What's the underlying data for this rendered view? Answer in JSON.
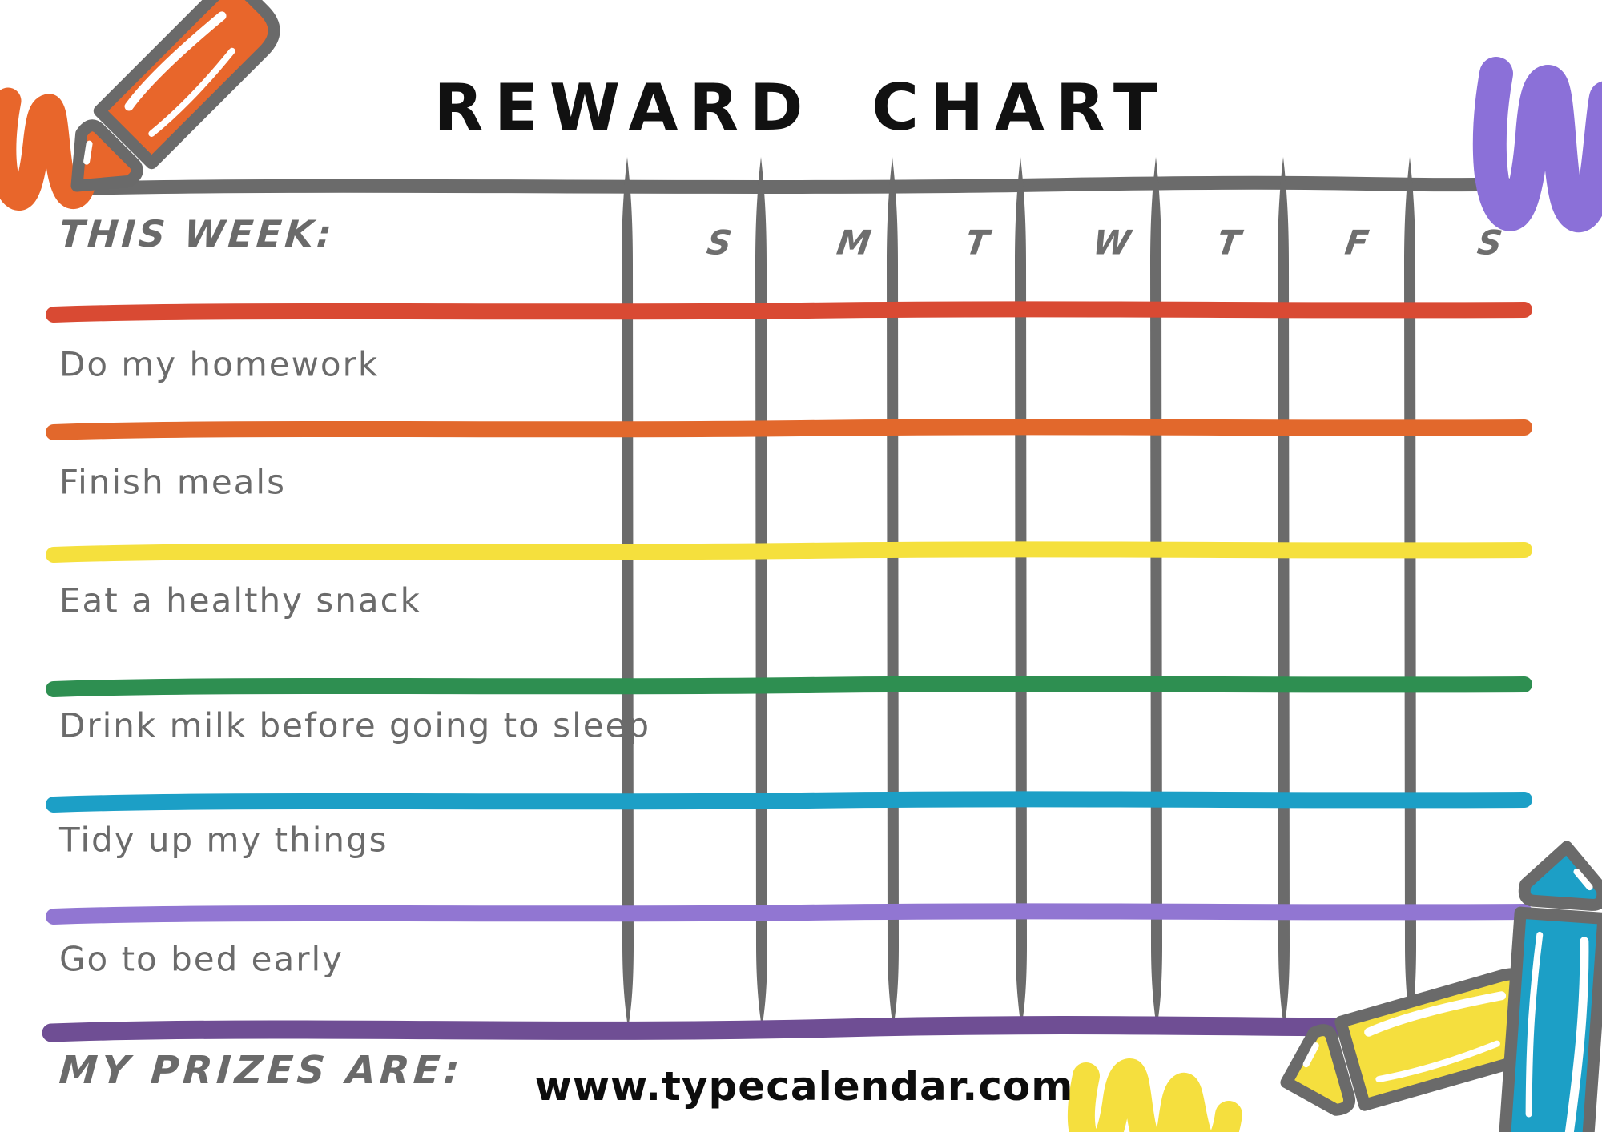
{
  "title": "REWARD CHART",
  "header": {
    "this_week_label": "THIS WEEK:",
    "days": [
      "S",
      "M",
      "T",
      "W",
      "T",
      "F",
      "S"
    ]
  },
  "tasks": [
    {
      "label": "Do my homework",
      "line_color": "#D94A33"
    },
    {
      "label": "Finish meals",
      "line_color": "#E2682C"
    },
    {
      "label": "Eat a healthy snack",
      "line_color": "#F5E03D"
    },
    {
      "label": "Drink milk before going to sleep",
      "line_color": "#2E8F51"
    },
    {
      "label": "Tidy up my things",
      "line_color": "#1C9FC6"
    },
    {
      "label": "Go to bed early",
      "line_color": "#9176D2"
    }
  ],
  "footer": {
    "prizes_label": "MY PRIZES ARE:",
    "bottom_line_color": "#6F4E94",
    "website": "www.typecalendar.com"
  },
  "style": {
    "grid_color": "#6B6B6B",
    "handwriting_color": "#6B6B6B",
    "title_color": "#111111"
  },
  "decorations": {
    "orange_crayon": {
      "icon": "crayon-icon",
      "color": "#E8662B"
    },
    "orange_squiggle": {
      "icon": "squiggle-icon",
      "color": "#E8662B"
    },
    "purple_squiggle": {
      "icon": "squiggle-icon",
      "color": "#8B70D8"
    },
    "yellow_squiggle": {
      "icon": "squiggle-icon",
      "color": "#F5DF3E"
    },
    "yellow_crayon": {
      "icon": "crayon-icon",
      "color": "#F5DF3E"
    },
    "blue_crayon": {
      "icon": "crayon-icon",
      "color": "#1C9FC6"
    }
  }
}
